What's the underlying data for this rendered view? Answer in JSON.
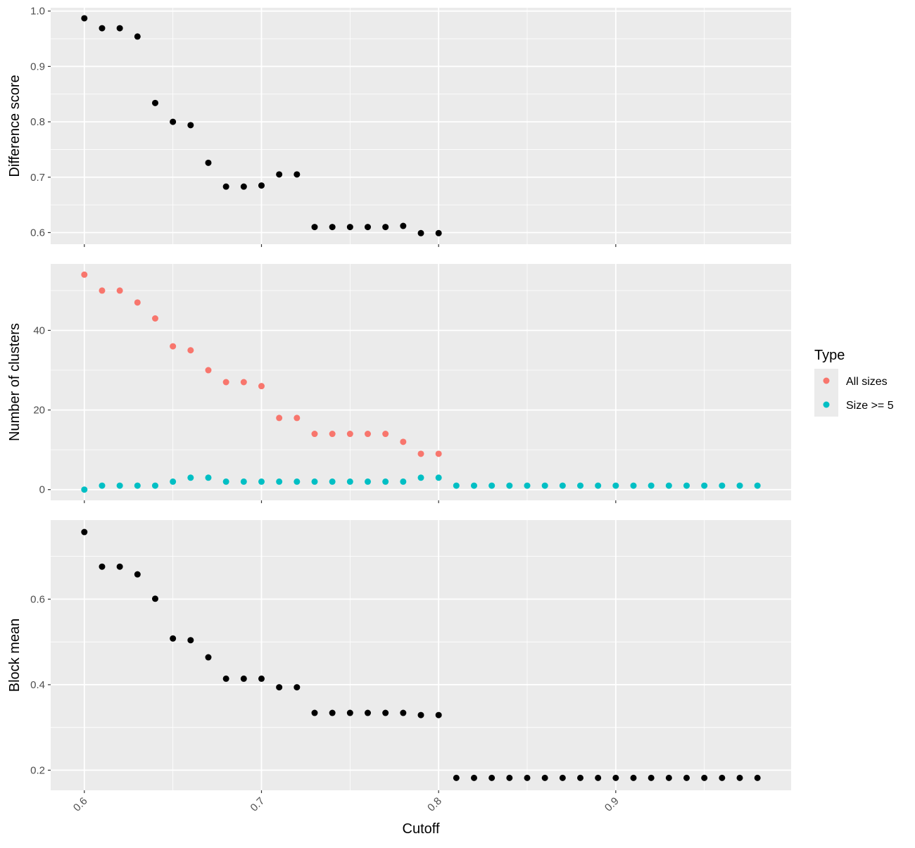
{
  "chart_data": {
    "type": "scatter",
    "xlabel": "Cutoff",
    "xlim": [
      0.581,
      0.999
    ],
    "x_ticks": [
      0.6,
      0.7,
      0.8,
      0.9
    ],
    "x_tick_labels": [
      "0.6",
      "0.7",
      "0.8",
      "0.9"
    ],
    "grid": true,
    "background": "#ebebeb",
    "legend": {
      "title": "Type",
      "placement": "right",
      "entries": [
        {
          "label": "All sizes",
          "color": "#f8766d"
        },
        {
          "label": "Size >= 5",
          "color": "#00bfc4"
        }
      ]
    },
    "panels": [
      {
        "ylabel": "Difference score",
        "ylim": [
          0.579,
          1.006
        ],
        "y_ticks": [
          0.6,
          0.7,
          0.8,
          0.9,
          1.0
        ],
        "y_tick_labels": [
          "0.6",
          "0.7",
          "0.8",
          "0.9",
          "1.0"
        ],
        "series": [
          {
            "color": "#000000",
            "x": [
              0.6,
              0.61,
              0.62,
              0.63,
              0.64,
              0.65,
              0.66,
              0.67,
              0.68,
              0.69,
              0.7,
              0.71,
              0.72,
              0.73,
              0.74,
              0.75,
              0.76,
              0.77,
              0.78,
              0.79,
              0.8
            ],
            "y": [
              0.987,
              0.969,
              0.969,
              0.954,
              0.834,
              0.8,
              0.794,
              0.726,
              0.683,
              0.683,
              0.685,
              0.705,
              0.705,
              0.61,
              0.61,
              0.61,
              0.61,
              0.61,
              0.612,
              0.599,
              0.599
            ]
          }
        ]
      },
      {
        "ylabel": "Number of clusters",
        "ylim": [
          -2.7,
          56.7
        ],
        "y_ticks": [
          0,
          20,
          40
        ],
        "y_tick_labels": [
          "0",
          "20",
          "40"
        ],
        "series": [
          {
            "name": "All sizes",
            "color": "#f8766d",
            "x": [
              0.6,
              0.61,
              0.62,
              0.63,
              0.64,
              0.65,
              0.66,
              0.67,
              0.68,
              0.69,
              0.7,
              0.71,
              0.72,
              0.73,
              0.74,
              0.75,
              0.76,
              0.77,
              0.78,
              0.79,
              0.8
            ],
            "y": [
              54,
              50,
              50,
              47,
              43,
              36,
              35,
              30,
              27,
              27,
              26,
              18,
              18,
              14,
              14,
              14,
              14,
              14,
              12,
              9,
              9
            ]
          },
          {
            "name": "Size >= 5",
            "color": "#00bfc4",
            "x": [
              0.6,
              0.61,
              0.62,
              0.63,
              0.64,
              0.65,
              0.66,
              0.67,
              0.68,
              0.69,
              0.7,
              0.71,
              0.72,
              0.73,
              0.74,
              0.75,
              0.76,
              0.77,
              0.78,
              0.79,
              0.8,
              0.81,
              0.82,
              0.83,
              0.84,
              0.85,
              0.86,
              0.87,
              0.88,
              0.89,
              0.9,
              0.91,
              0.92,
              0.93,
              0.94,
              0.95,
              0.96,
              0.97,
              0.98
            ],
            "y": [
              0,
              1,
              1,
              1,
              1,
              2,
              3,
              3,
              2,
              2,
              2,
              2,
              2,
              2,
              2,
              2,
              2,
              2,
              2,
              3,
              3,
              1,
              1,
              1,
              1,
              1,
              1,
              1,
              1,
              1,
              1,
              1,
              1,
              1,
              1,
              1,
              1,
              1,
              1
            ]
          }
        ]
      },
      {
        "ylabel": "Block mean",
        "ylim": [
          0.153,
          0.785
        ],
        "y_ticks": [
          0.2,
          0.4,
          0.6
        ],
        "y_tick_labels": [
          "0.2",
          "0.4",
          "0.6"
        ],
        "series": [
          {
            "color": "#000000",
            "x": [
              0.6,
              0.61,
              0.62,
              0.63,
              0.64,
              0.65,
              0.66,
              0.67,
              0.68,
              0.69,
              0.7,
              0.71,
              0.72,
              0.73,
              0.74,
              0.75,
              0.76,
              0.77,
              0.78,
              0.79,
              0.8,
              0.81,
              0.82,
              0.83,
              0.84,
              0.85,
              0.86,
              0.87,
              0.88,
              0.89,
              0.9,
              0.91,
              0.92,
              0.93,
              0.94,
              0.95,
              0.96,
              0.97,
              0.98
            ],
            "y": [
              0.757,
              0.676,
              0.676,
              0.658,
              0.601,
              0.508,
              0.504,
              0.464,
              0.414,
              0.414,
              0.414,
              0.394,
              0.394,
              0.334,
              0.334,
              0.334,
              0.334,
              0.334,
              0.334,
              0.329,
              0.329,
              0.182,
              0.182,
              0.182,
              0.182,
              0.182,
              0.182,
              0.182,
              0.182,
              0.182,
              0.182,
              0.182,
              0.182,
              0.182,
              0.182,
              0.182,
              0.182,
              0.182,
              0.182
            ]
          }
        ]
      }
    ]
  }
}
